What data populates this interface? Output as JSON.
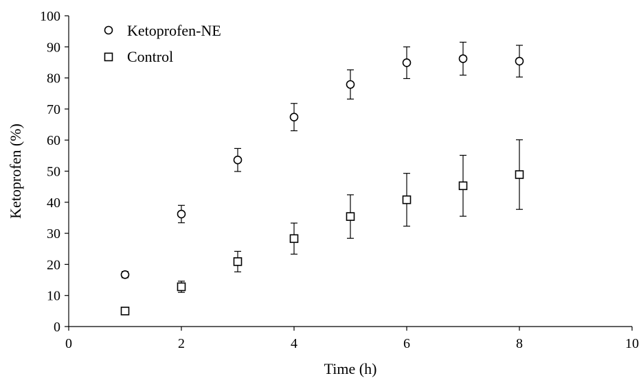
{
  "chart_data": {
    "type": "scatter",
    "title": "",
    "xlabel": "Time (h)",
    "ylabel": "Ketoprofen (%)",
    "xlim": [
      0,
      10
    ],
    "ylim": [
      0,
      100
    ],
    "x_ticks": [
      0,
      2,
      4,
      6,
      8,
      10
    ],
    "y_ticks": [
      0,
      10,
      20,
      30,
      40,
      50,
      60,
      70,
      80,
      90,
      100
    ],
    "grid": false,
    "legend_position": "top-left",
    "series": [
      {
        "name": "Ketoprofen-NE",
        "marker": "circle",
        "x": [
          1,
          2,
          3,
          4,
          5,
          6,
          7,
          8
        ],
        "y": [
          16.7,
          36.2,
          53.6,
          67.4,
          77.9,
          84.9,
          86.2,
          85.4
        ],
        "error": [
          1.0,
          2.8,
          3.7,
          4.4,
          4.7,
          5.1,
          5.3,
          5.1
        ]
      },
      {
        "name": "Control",
        "marker": "square",
        "x": [
          1,
          2,
          3,
          4,
          5,
          6,
          7,
          8
        ],
        "y": [
          5.0,
          12.8,
          20.9,
          28.3,
          35.4,
          40.8,
          45.3,
          48.9
        ],
        "error": [
          0.0,
          1.8,
          3.3,
          5.0,
          7.0,
          8.5,
          9.8,
          11.2
        ]
      }
    ]
  }
}
